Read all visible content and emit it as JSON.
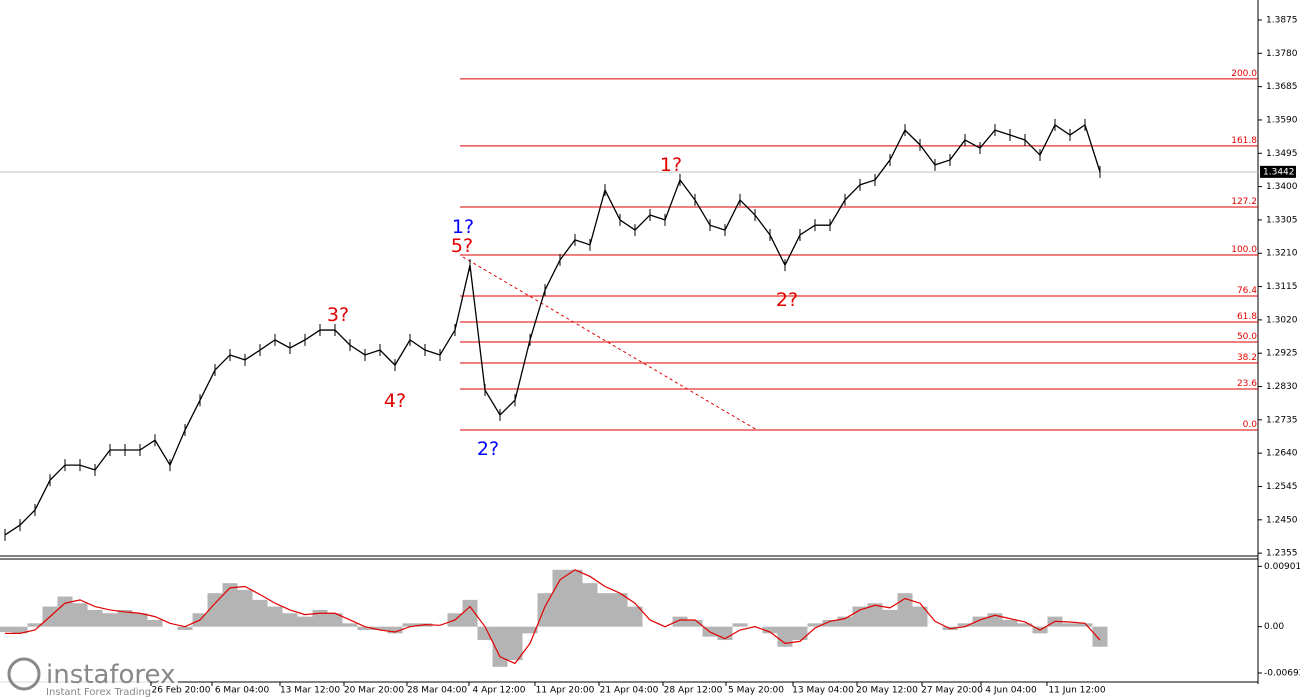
{
  "chart_data": [
    {
      "type": "line",
      "color": "#000000",
      "values": [
        1.2407,
        1.2435,
        1.2478,
        1.2563,
        1.2606,
        1.2606,
        1.2592,
        1.2649,
        1.2649,
        1.2649,
        1.2677,
        1.2606,
        1.2706,
        1.2791,
        1.2877,
        1.292,
        1.2906,
        1.2934,
        1.2963,
        1.294,
        1.2963,
        1.2991,
        1.2991,
        1.2948,
        1.292,
        1.2934,
        1.2891,
        1.2963,
        1.2934,
        1.292,
        1.2991,
        1.3176,
        1.282,
        1.2749,
        1.2791,
        1.2963,
        1.3105,
        1.3191,
        1.3248,
        1.3234,
        1.339,
        1.3305,
        1.3276,
        1.3319,
        1.3305,
        1.3419,
        1.3362,
        1.329,
        1.3276,
        1.3362,
        1.3319,
        1.3262,
        1.3176,
        1.3262,
        1.329,
        1.329,
        1.3362,
        1.3405,
        1.3419,
        1.3476,
        1.3561,
        1.3519,
        1.3462,
        1.3476,
        1.3533,
        1.351,
        1.3561,
        1.3547,
        1.3533,
        1.349,
        1.3576,
        1.3547,
        1.3576,
        1.3442
      ],
      "ylim": [
        1.2344,
        1.3932
      ],
      "yticks": [
        1.3875,
        {
          "value": 1.378,
          "label": "1.3780"
        },
        1.3685,
        {
          "value": 1.359,
          "label": "1.3590"
        },
        1.3495,
        {
          "value": 1.34,
          "label": "1.3400"
        },
        1.3305,
        {
          "value": 1.321,
          "label": "1.3210"
        },
        1.3115,
        {
          "value": 1.302,
          "label": "1.3020"
        },
        1.2925,
        {
          "value": 1.283,
          "label": "1.2830"
        },
        1.2735,
        {
          "value": 1.264,
          "label": "1.2640"
        },
        1.2545,
        {
          "value": 1.245,
          "label": "1.2450"
        },
        1.2355
      ],
      "last_price": 1.3442,
      "fib_color": "#e00000",
      "levels": [
        {
          "value": 1.3707,
          "label": "200.0"
        },
        {
          "value": 1.3516,
          "label": "161.8"
        },
        {
          "value": 1.3342,
          "label": "127.2"
        },
        {
          "value": 1.3205,
          "label": "100.0"
        },
        {
          "value": 1.3088,
          "label": "76.4"
        },
        {
          "value": 1.3014,
          "label": "61.8"
        },
        {
          "value": 1.2957,
          "label": "50.0"
        },
        {
          "value": 1.2897,
          "label": "38.2"
        },
        {
          "value": 1.2823,
          "label": "23.6"
        },
        {
          "value": 1.2706,
          "label": "0.0"
        }
      ],
      "annotations": [
        {
          "label": "1?",
          "color": "#0000ff"
        },
        {
          "label": "5?",
          "color": "#e00000"
        },
        {
          "label": "3?",
          "color": "#e00000"
        },
        {
          "label": "4?",
          "color": "#e00000"
        },
        {
          "label": "2?",
          "color": "#0000ff"
        },
        {
          "label": "1?",
          "color": "#e00000"
        },
        {
          "label": "2?",
          "color": "#e00000"
        }
      ]
    },
    {
      "type": "macd",
      "histogram": {
        "color": "#b4b4b4",
        "values": [
          -0.0008,
          -0.001,
          0.0005,
          0.003,
          0.0045,
          0.0035,
          0.0025,
          0.002,
          0.0025,
          0.002,
          0.001,
          0.0,
          -0.0005,
          0.002,
          0.005,
          0.0065,
          0.0055,
          0.004,
          0.003,
          0.002,
          0.0015,
          0.0025,
          0.002,
          0.0005,
          -0.0005,
          -0.0005,
          -0.001,
          0.0005,
          0.0005,
          0.0,
          0.002,
          0.004,
          -0.002,
          -0.006,
          -0.005,
          -0.001,
          0.005,
          0.0085,
          0.0085,
          0.0065,
          0.005,
          0.005,
          0.003,
          0.0,
          0.0,
          0.0015,
          0.001,
          -0.0015,
          -0.002,
          0.0005,
          0.0,
          -0.001,
          -0.003,
          -0.002,
          0.0005,
          0.001,
          0.0015,
          0.003,
          0.0035,
          0.0025,
          0.005,
          0.003,
          0.0,
          -0.0005,
          0.0005,
          0.0015,
          0.002,
          0.001,
          0.0005,
          -0.001,
          0.0015,
          0.0005,
          0.0005,
          -0.003
        ]
      },
      "signal": {
        "color": "#e00000",
        "values": [
          -0.001,
          -0.001,
          -0.0005,
          0.0015,
          0.0035,
          0.004,
          0.003,
          0.0025,
          0.0022,
          0.002,
          0.0015,
          0.0005,
          0.0,
          0.001,
          0.0035,
          0.0058,
          0.006,
          0.0048,
          0.0035,
          0.0025,
          0.0018,
          0.002,
          0.002,
          0.001,
          0.0,
          -0.0005,
          -0.0008,
          0.0,
          0.0003,
          0.0002,
          0.001,
          0.003,
          0.0,
          -0.0045,
          -0.0055,
          -0.0025,
          0.003,
          0.007,
          0.0085,
          0.0075,
          0.006,
          0.005,
          0.0035,
          0.001,
          0.0,
          0.001,
          0.001,
          -0.0008,
          -0.0018,
          -0.0005,
          0.0,
          -0.0008,
          -0.0025,
          -0.0022,
          -0.0002,
          0.0008,
          0.0012,
          0.0025,
          0.0032,
          0.0028,
          0.0042,
          0.0035,
          0.0008,
          -0.0003,
          0.0,
          0.001,
          0.0017,
          0.0012,
          0.0007,
          -0.0005,
          0.0008,
          0.0007,
          0.0005,
          -0.002
        ]
      },
      "ylim": [
        -0.00797,
        0.00996
      ],
      "yticks": [
        0.00901,
        {
          "value": 0,
          "label": "0.00"
        },
        -0.00692
      ],
      "x_labels": [
        "26 Feb 20:00",
        "6 Mar 04:00",
        "13 Mar 12:00",
        "20 Mar 20:00",
        "28 Mar 04:00",
        "4 Apr 12:00",
        "11 Apr 20:00",
        "21 Apr 04:00",
        "28 Apr 12:00",
        "5 May 20:00",
        "13 May 04:00",
        "20 May 12:00",
        "27 May 20:00",
        "4 Jun 04:00",
        "11 Jun 12:00"
      ]
    }
  ],
  "watermark": {
    "brand": "instaforex",
    "tagline": "Instant Forex Trading"
  }
}
